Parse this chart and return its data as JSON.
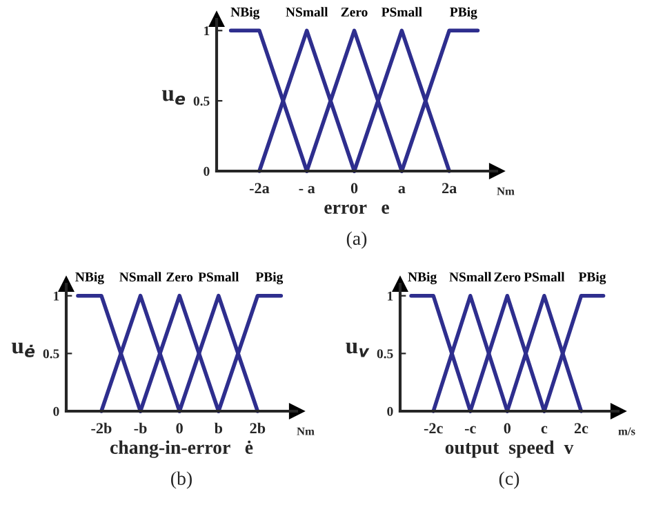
{
  "chart_data": [
    {
      "type": "line",
      "xlabel": "error   e",
      "ylabel": "u$_{e}$",
      "xlim": [
        -2.9,
        3.0
      ],
      "ylim": [
        0,
        1.08
      ],
      "xticks": [
        {
          "value": -2,
          "label": "-2a"
        },
        {
          "value": -1,
          "label": "- a"
        },
        0,
        {
          "value": 1,
          "label": "a"
        },
        {
          "value": 2,
          "label": "2a"
        }
      ],
      "yticks": [
        0,
        0.5,
        1
      ],
      "grid": false,
      "legend": false,
      "marker": "none",
      "line_style": "solid",
      "annotations": [
        "Nm",
        "(a)"
      ],
      "series": [
        {
          "name": "NBig",
          "color": "#2e2e8e",
          "x": [
            -2.6,
            -2,
            -1
          ],
          "values": [
            1,
            1,
            0
          ]
        },
        {
          "name": "NSmall",
          "color": "#2e2e8e",
          "x": [
            -2,
            -1,
            0
          ],
          "values": [
            0,
            1,
            0
          ]
        },
        {
          "name": "Zero",
          "color": "#2e2e8e",
          "x": [
            -1,
            0,
            1
          ],
          "values": [
            0,
            1,
            0
          ]
        },
        {
          "name": "PSmall",
          "color": "#2e2e8e",
          "x": [
            0,
            1,
            2
          ],
          "values": [
            0,
            1,
            0
          ]
        },
        {
          "name": "PBig",
          "color": "#2e2e8e",
          "x": [
            1,
            2,
            2.6
          ],
          "values": [
            0,
            1,
            1
          ]
        }
      ]
    },
    {
      "type": "line",
      "xlabel": "chang-in-error   ė",
      "ylabel": "u$_{ė}$",
      "xlim": [
        -2.9,
        3.0
      ],
      "ylim": [
        0,
        1.1
      ],
      "xticks": [
        {
          "value": -2,
          "label": "-2b"
        },
        {
          "value": -1,
          "label": "-b"
        },
        0,
        {
          "value": 1,
          "label": "b"
        },
        {
          "value": 2,
          "label": "2b"
        }
      ],
      "yticks": [
        0,
        0.5,
        1
      ],
      "grid": false,
      "legend": false,
      "marker": "none",
      "line_style": "solid",
      "annotations": [
        "Nm",
        "(b)"
      ],
      "series": [
        {
          "name": "NBig",
          "color": "#2e2e8e",
          "x": [
            -2.6,
            -2,
            -1
          ],
          "values": [
            1,
            1,
            0
          ]
        },
        {
          "name": "NSmall",
          "color": "#2e2e8e",
          "x": [
            -2,
            -1,
            0
          ],
          "values": [
            0,
            1,
            0
          ]
        },
        {
          "name": "Zero",
          "color": "#2e2e8e",
          "x": [
            -1,
            0,
            1
          ],
          "values": [
            0,
            1,
            0
          ]
        },
        {
          "name": "PSmall",
          "color": "#2e2e8e",
          "x": [
            0,
            1,
            2
          ],
          "values": [
            0,
            1,
            0
          ]
        },
        {
          "name": "PBig",
          "color": "#2e2e8e",
          "x": [
            1,
            2,
            2.6
          ],
          "values": [
            0,
            1,
            1
          ]
        }
      ]
    },
    {
      "type": "line",
      "xlabel": "output  speed  v",
      "ylabel": "u$_{v}$",
      "xlim": [
        -2.9,
        3.0
      ],
      "ylim": [
        0,
        1.1
      ],
      "xticks": [
        {
          "value": -2,
          "label": "-2c"
        },
        {
          "value": -1,
          "label": "-c"
        },
        0,
        {
          "value": 1,
          "label": "c"
        },
        {
          "value": 2,
          "label": "2c"
        }
      ],
      "yticks": [
        0,
        0.5,
        1
      ],
      "grid": false,
      "legend": false,
      "marker": "none",
      "line_style": "solid",
      "annotations": [
        "m/s",
        "(c)"
      ],
      "series": [
        {
          "name": "NBig",
          "color": "#2e2e8e",
          "x": [
            -2.6,
            -2,
            -1
          ],
          "values": [
            1,
            1,
            0
          ]
        },
        {
          "name": "NSmall",
          "color": "#2e2e8e",
          "x": [
            -2,
            -1,
            0
          ],
          "values": [
            0,
            1,
            0
          ]
        },
        {
          "name": "Zero",
          "color": "#2e2e8e",
          "x": [
            -1,
            0,
            1
          ],
          "values": [
            0,
            1,
            0
          ]
        },
        {
          "name": "PSmall",
          "color": "#2e2e8e",
          "x": [
            0,
            1,
            2
          ],
          "values": [
            0,
            1,
            0
          ]
        },
        {
          "name": "PBig",
          "color": "#2e2e8e",
          "x": [
            1,
            2,
            2.6
          ],
          "values": [
            0,
            1,
            1
          ]
        }
      ]
    }
  ]
}
